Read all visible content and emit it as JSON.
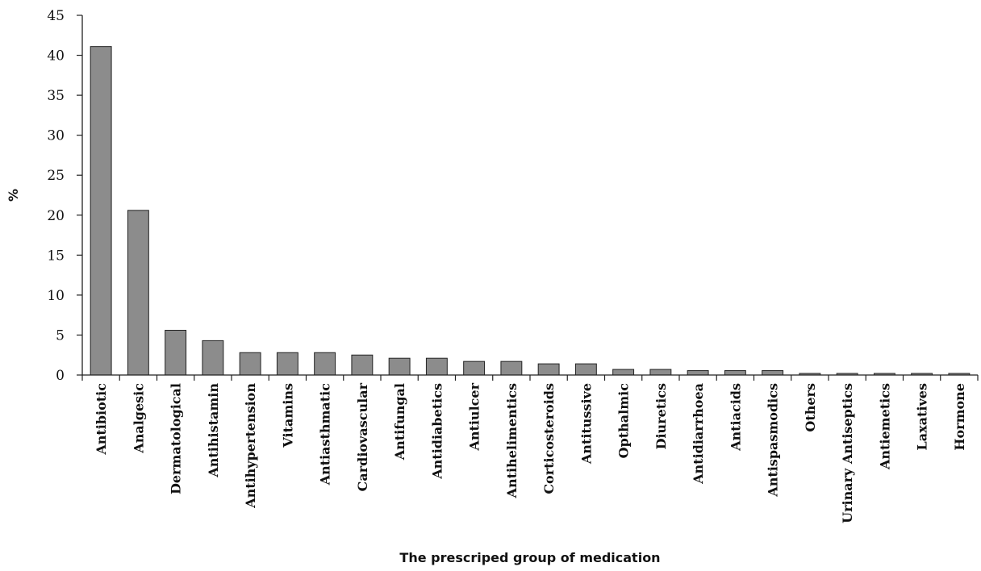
{
  "chart_data": {
    "type": "bar",
    "categories": [
      "Antibiotic",
      "Analgesic",
      "Dermatological",
      "Antihistamin",
      "Antihypertension",
      "Vitamins",
      "Antiasthmatic",
      "Cardiovascular",
      "Antifungal",
      "Antidiabetics",
      "Antiulcer",
      "Antihelimentics",
      "Corticosteroids",
      "Antitussive",
      "Opthalmic",
      "Diuretics",
      "Antidiarrhoea",
      "Antiacids",
      "Antispasmodics",
      "Others",
      "Urinary Antiseptics",
      "Antiemetics",
      "Laxatives",
      "Hormone"
    ],
    "values": [
      41.1,
      20.6,
      5.6,
      4.3,
      2.8,
      2.8,
      2.8,
      2.5,
      2.1,
      2.1,
      1.7,
      1.7,
      1.4,
      1.4,
      0.7,
      0.7,
      0.55,
      0.55,
      0.55,
      0.2,
      0.2,
      0.2,
      0.2,
      0.2
    ],
    "title": "",
    "xlabel": "The prescriped group of medication",
    "ylabel": "%",
    "ylim": [
      0,
      45
    ],
    "yticks": [
      0,
      5,
      10,
      15,
      20,
      25,
      30,
      35,
      40,
      45
    ],
    "grid": false,
    "bar_color": "#8c8c8c"
  }
}
